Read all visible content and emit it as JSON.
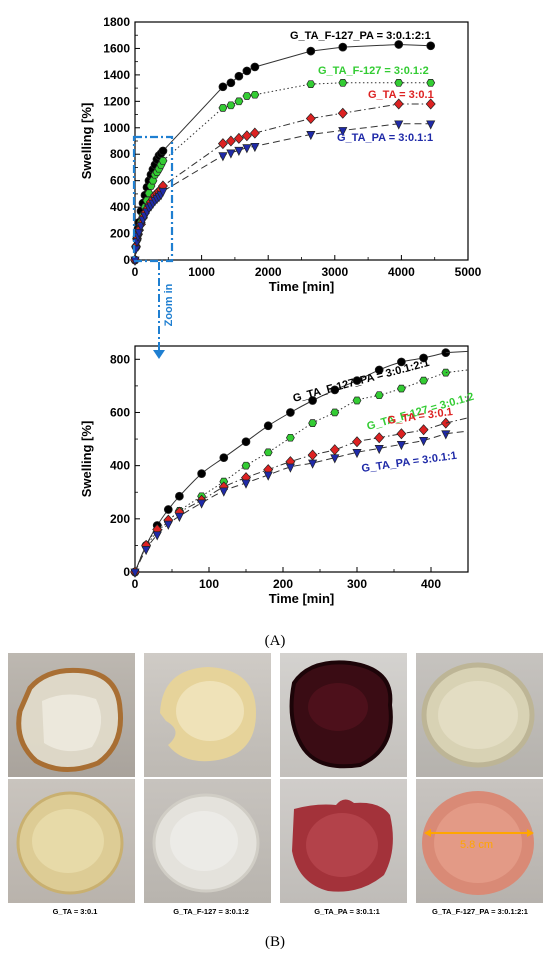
{
  "chart_data": [
    {
      "type": "line",
      "xlabel": "Time [min]",
      "ylabel": "Swelling [%]",
      "xlim": [
        0,
        5000
      ],
      "ylim": [
        0,
        1800
      ],
      "x_ticks": [
        "0",
        "1000",
        "2000",
        "3000",
        "4000",
        "5000"
      ],
      "y_ticks": [
        "0",
        "200",
        "400",
        "600",
        "800",
        "1000",
        "1200",
        "1400",
        "1600",
        "1800"
      ],
      "zoom_label": "Zoom in",
      "series": [
        {
          "name": "G_TA_F-127_PA = 3:0.1:2:1",
          "color": "#000000",
          "marker": "circle",
          "line": "solid",
          "x": [
            0,
            15,
            30,
            45,
            60,
            90,
            120,
            150,
            180,
            210,
            240,
            270,
            300,
            330,
            360,
            390,
            420,
            1320,
            1440,
            1560,
            1680,
            1800,
            2640,
            3120,
            3960,
            4440
          ],
          "y": [
            0,
            100,
            175,
            235,
            285,
            370,
            430,
            490,
            550,
            600,
            645,
            685,
            720,
            760,
            790,
            805,
            825,
            1310,
            1340,
            1390,
            1430,
            1460,
            1580,
            1610,
            1630,
            1620
          ]
        },
        {
          "name": "G_TA_F-127 = 3:0.1:2",
          "color": "#33cc33",
          "marker": "hexagon",
          "line": "dotted",
          "x": [
            0,
            15,
            30,
            45,
            60,
            90,
            120,
            150,
            180,
            210,
            240,
            270,
            300,
            330,
            360,
            390,
            420,
            1320,
            1440,
            1560,
            1680,
            1800,
            2640,
            3120,
            3960,
            4440
          ],
          "y": [
            0,
            95,
            150,
            190,
            230,
            285,
            340,
            400,
            450,
            505,
            560,
            600,
            645,
            665,
            690,
            720,
            750,
            1150,
            1170,
            1200,
            1240,
            1250,
            1330,
            1340,
            1340,
            1340
          ]
        },
        {
          "name": "G_TA = 3:0.1",
          "color": "#dd2222",
          "marker": "diamond",
          "line": "dashdot",
          "x": [
            0,
            15,
            30,
            45,
            60,
            90,
            120,
            150,
            180,
            210,
            240,
            270,
            300,
            330,
            360,
            390,
            420,
            1320,
            1440,
            1560,
            1680,
            1800,
            2640,
            3120,
            3960,
            4440
          ],
          "y": [
            0,
            100,
            160,
            195,
            225,
            270,
            320,
            355,
            385,
            415,
            440,
            460,
            490,
            505,
            520,
            535,
            560,
            880,
            900,
            920,
            940,
            960,
            1070,
            1110,
            1180,
            1180
          ]
        },
        {
          "name": "G_TA_PA = 3:0.1:1",
          "color": "#1f2aa8",
          "marker": "triangle-down",
          "line": "dashed",
          "x": [
            0,
            15,
            30,
            45,
            60,
            90,
            120,
            150,
            180,
            210,
            240,
            270,
            300,
            330,
            360,
            390,
            420,
            1320,
            1440,
            1560,
            1680,
            1800,
            2640,
            3120,
            3960,
            4440
          ],
          "y": [
            0,
            85,
            140,
            180,
            210,
            260,
            305,
            335,
            365,
            395,
            410,
            430,
            450,
            465,
            480,
            495,
            520,
            790,
            810,
            830,
            850,
            860,
            950,
            980,
            1030,
            1030
          ]
        }
      ]
    },
    {
      "type": "line",
      "xlabel": "Time [min]",
      "ylabel": "Swelling [%]",
      "xlim": [
        0,
        450
      ],
      "ylim": [
        0,
        850
      ],
      "x_ticks": [
        "0",
        "100",
        "200",
        "300",
        "400"
      ],
      "y_ticks": [
        "0",
        "200",
        "400",
        "600",
        "800"
      ],
      "series_labels": [
        "G_TA_F-127_PA = 3:0.1:2:1",
        "G_TA_F-127 = 3:0.1:2",
        "G_TA = 3:0.1",
        "G_TA_PA = 3:0.1:1"
      ]
    }
  ],
  "labels": {
    "panel_a": "(A)",
    "panel_b": "(B)",
    "measure": "5.8 cm",
    "captions": [
      "G_TA = 3:0.1",
      "G_TA_F-127 = 3:0.1:2",
      "G_TA_PA = 3:0.1:1",
      "G_TA_F-127_PA = 3:0.1:2:1"
    ]
  }
}
